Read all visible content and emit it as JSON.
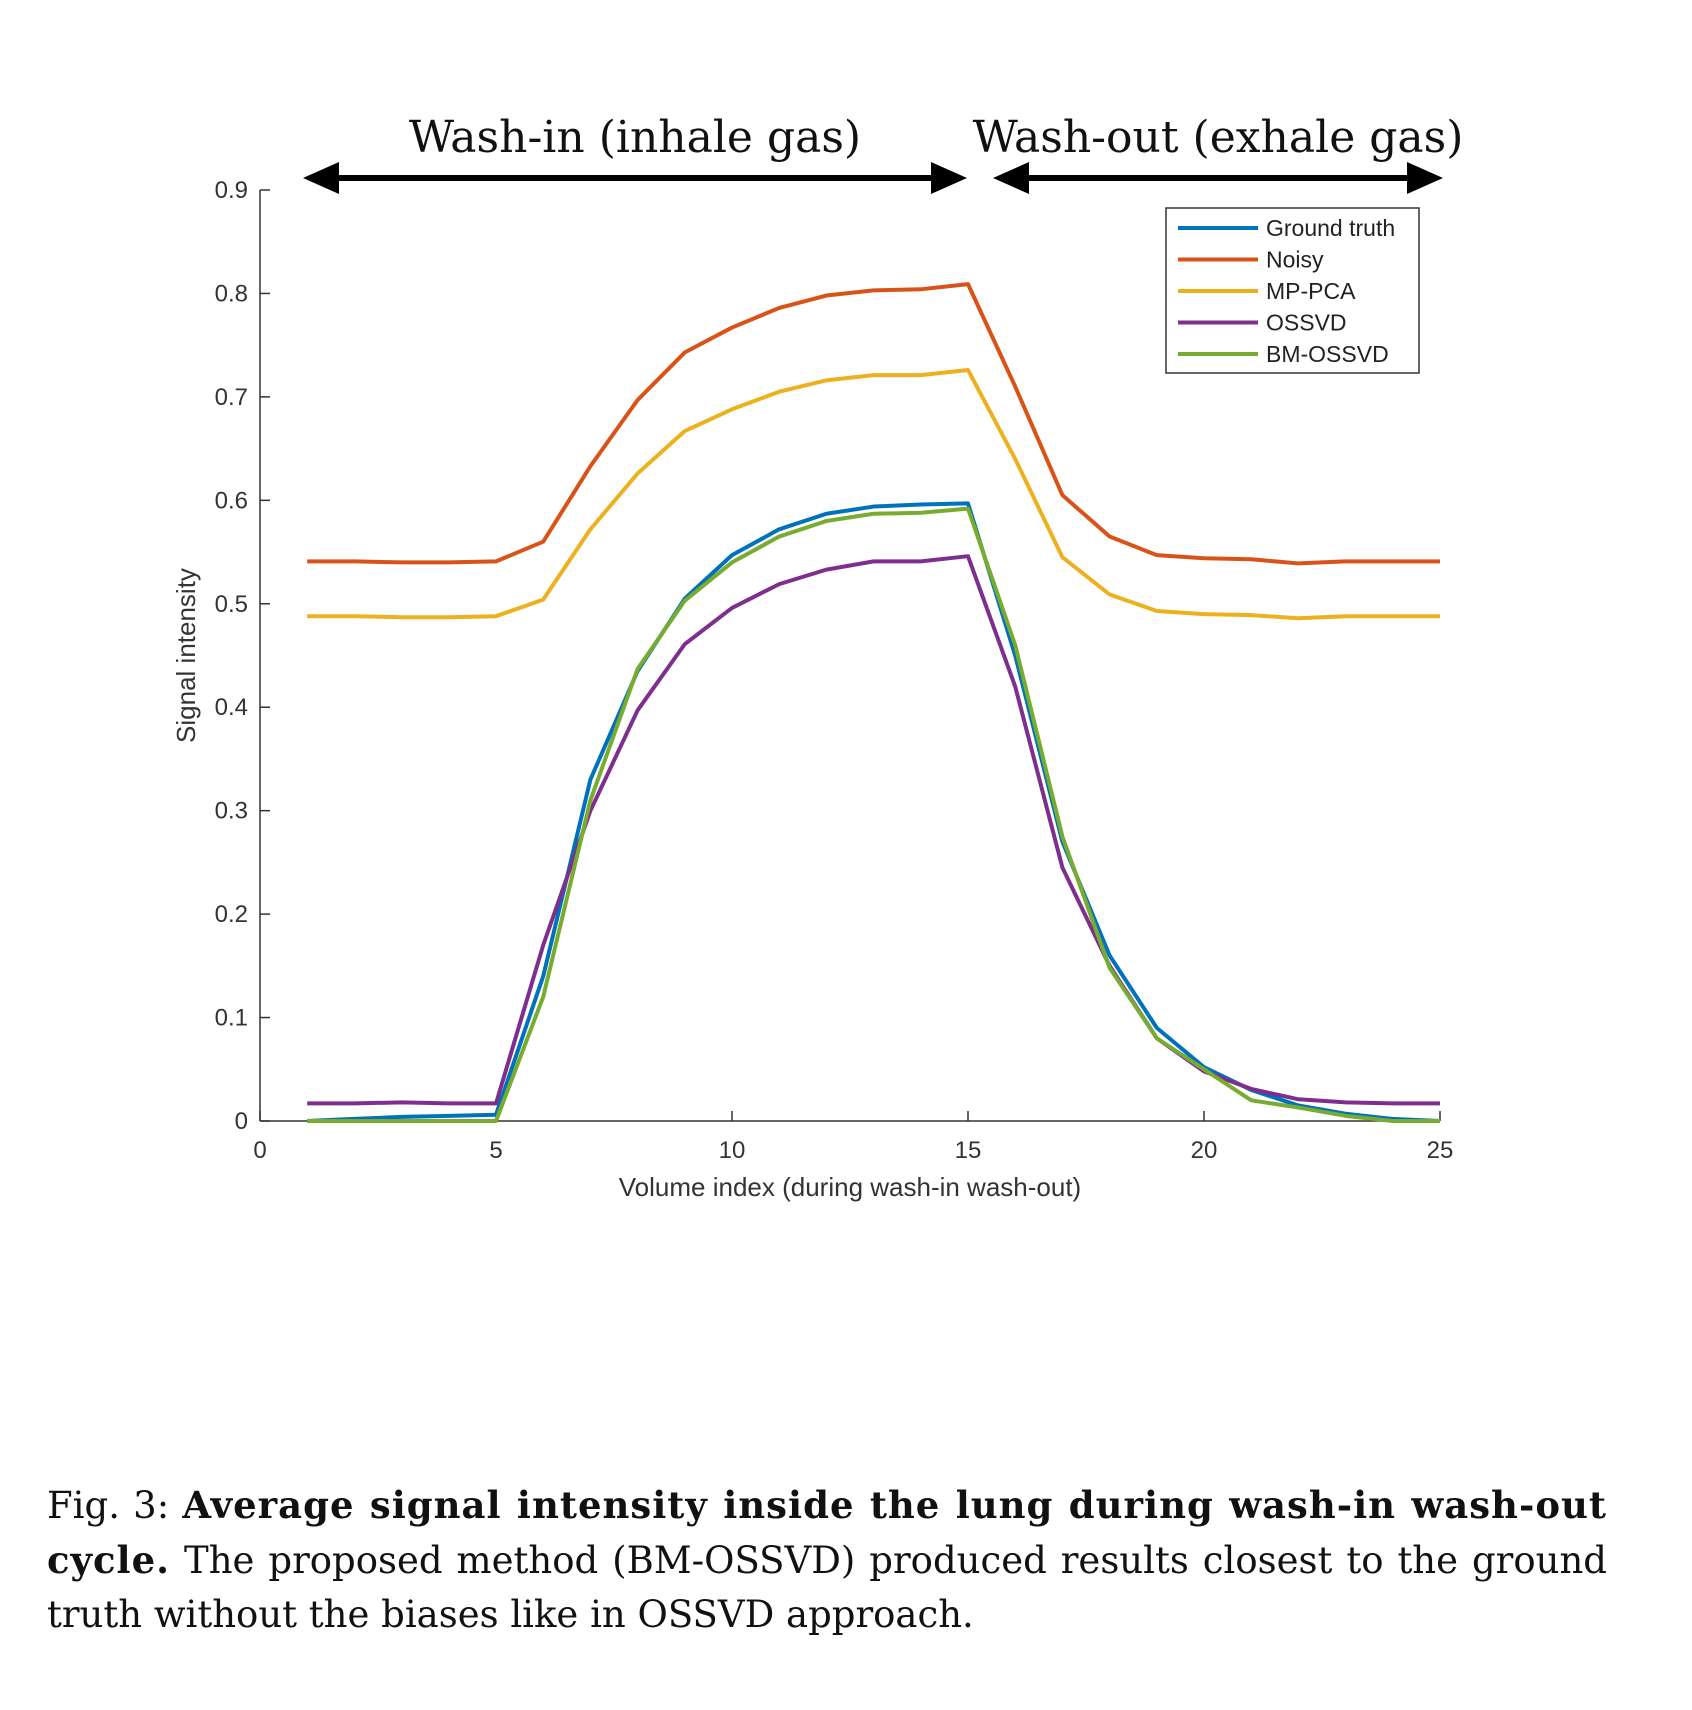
{
  "chart_data": {
    "type": "line",
    "xlabel": "Volume index (during wash-in wash-out)",
    "ylabel": "Signal intensity",
    "xlim": [
      0,
      25
    ],
    "ylim": [
      0,
      0.9
    ],
    "xticks": [
      0,
      5,
      10,
      15,
      20,
      25
    ],
    "yticks": [
      0,
      0.1,
      0.2,
      0.3,
      0.4,
      0.5,
      0.6,
      0.7,
      0.8,
      0.9
    ],
    "grid": false,
    "legend_position": "top-right",
    "annotations": [
      {
        "text": "Wash-in (inhale gas)",
        "x_range": [
          1,
          15
        ]
      },
      {
        "text": "Wash-out (exhale gas)",
        "x_range": [
          15.5,
          25
        ]
      }
    ],
    "x": [
      1,
      2,
      3,
      4,
      5,
      6,
      7,
      8,
      9,
      10,
      11,
      12,
      13,
      14,
      15,
      16,
      17,
      18,
      19,
      20,
      21,
      22,
      23,
      24,
      25
    ],
    "series": [
      {
        "name": "Ground truth",
        "color": "#0072BD",
        "values": [
          0.0,
          0.002,
          0.004,
          0.005,
          0.006,
          0.14,
          0.33,
          0.435,
          0.505,
          0.547,
          0.572,
          0.587,
          0.594,
          0.596,
          0.597,
          0.45,
          0.27,
          0.16,
          0.09,
          0.052,
          0.03,
          0.015,
          0.007,
          0.002,
          0.0
        ]
      },
      {
        "name": "Noisy",
        "color": "#D95319",
        "values": [
          0.541,
          0.541,
          0.54,
          0.54,
          0.541,
          0.56,
          0.633,
          0.697,
          0.743,
          0.767,
          0.786,
          0.798,
          0.803,
          0.804,
          0.809,
          0.71,
          0.605,
          0.565,
          0.547,
          0.544,
          0.543,
          0.539,
          0.541,
          0.541,
          0.541
        ]
      },
      {
        "name": "MP-PCA",
        "color": "#EDB120",
        "values": [
          0.488,
          0.488,
          0.487,
          0.487,
          0.488,
          0.504,
          0.572,
          0.626,
          0.667,
          0.688,
          0.705,
          0.716,
          0.721,
          0.721,
          0.726,
          0.64,
          0.545,
          0.509,
          0.493,
          0.49,
          0.489,
          0.486,
          0.488,
          0.488,
          0.488
        ]
      },
      {
        "name": "OSSVD",
        "color": "#7E2F8E",
        "values": [
          0.017,
          0.017,
          0.018,
          0.017,
          0.017,
          0.17,
          0.3,
          0.397,
          0.461,
          0.496,
          0.519,
          0.533,
          0.541,
          0.541,
          0.546,
          0.42,
          0.245,
          0.15,
          0.08,
          0.048,
          0.031,
          0.021,
          0.018,
          0.017,
          0.017
        ]
      },
      {
        "name": "BM-OSSVD",
        "color": "#77AC30",
        "values": [
          0.0,
          0.0,
          0.0,
          0.0,
          0.0,
          0.12,
          0.31,
          0.437,
          0.503,
          0.54,
          0.565,
          0.58,
          0.587,
          0.588,
          0.592,
          0.46,
          0.275,
          0.148,
          0.08,
          0.05,
          0.02,
          0.013,
          0.005,
          0.0,
          0.0
        ]
      }
    ]
  },
  "caption": {
    "label": "Fig. 3:",
    "bold": "Average signal intensity inside the lung during wash-in wash-out cycle.",
    "text": "The proposed method (BM-OSSVD) produced results closest to the ground truth without the biases like in OSSVD approach."
  }
}
